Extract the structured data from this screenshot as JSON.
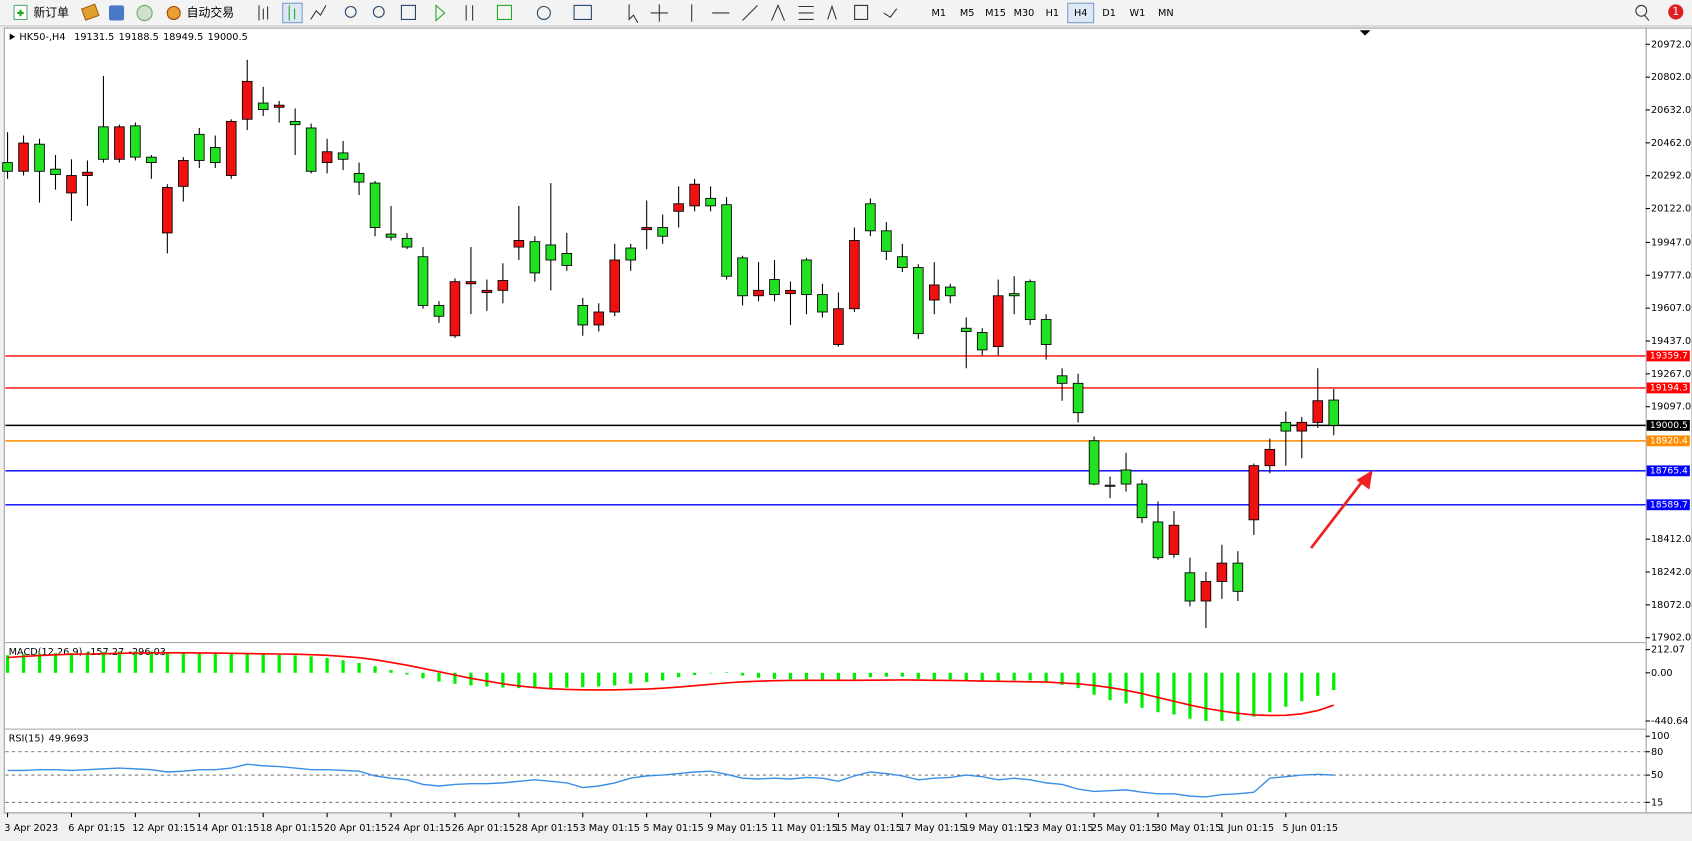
{
  "toolbar": {
    "new_order": "新订单",
    "auto_trading": "自动交易",
    "timeframes": [
      "M1",
      "M5",
      "M15",
      "M30",
      "H1",
      "H4",
      "D1",
      "W1",
      "MN"
    ],
    "active_timeframe": "H4",
    "notifications": 1
  },
  "chart_data": [
    {
      "type": "candlestick",
      "title": "HK50-,H4",
      "up_color": "#ee1111",
      "down_color": "#22e022",
      "categories": [
        "3 Apr 2023",
        null,
        null,
        null,
        "6 Apr 01:15",
        null,
        null,
        null,
        "12 Apr 01:15",
        null,
        null,
        null,
        "14 Apr 01:15",
        null,
        null,
        null,
        "18 Apr 01:15",
        null,
        null,
        null,
        "20 Apr 01:15",
        null,
        null,
        null,
        "24 Apr 01:15",
        null,
        null,
        null,
        "26 Apr 01:15",
        null,
        null,
        null,
        "28 Apr 01:15",
        null,
        null,
        null,
        "3 May 01:15",
        null,
        null,
        null,
        "5 May 01:15",
        null,
        null,
        null,
        "9 May 01:15",
        null,
        null,
        null,
        "11 May 01:15",
        null,
        null,
        null,
        "15 May 01:15",
        null,
        null,
        null,
        "17 May 01:15",
        null,
        null,
        null,
        "19 May 01:15",
        null,
        null,
        null,
        "23 May 01:15",
        null,
        null,
        null,
        "25 May 01:15",
        null,
        null,
        null,
        "30 May 01:15",
        null,
        null,
        null,
        "1 Jun 01:15",
        null,
        null,
        null,
        "5 Jun 01:15",
        null,
        null,
        null
      ],
      "open": [
        20360,
        20315,
        20455,
        20326,
        20203,
        20293,
        20545,
        20377,
        20550,
        20388,
        19996,
        20237,
        20506,
        20438,
        20293,
        20584,
        20668,
        20646,
        20573,
        20539,
        20360,
        20410,
        20304,
        20254,
        19990,
        19968,
        19873,
        19621,
        19464,
        19733,
        19688,
        19699,
        19923,
        19951,
        19934,
        19890,
        19621,
        19520,
        19587,
        19918,
        20013,
        20024,
        20108,
        20136,
        20175,
        20142,
        19867,
        19671,
        19755,
        19682,
        19856,
        19677,
        19419,
        19604,
        20147,
        20007,
        19873,
        19817,
        19649,
        19716,
        19503,
        19481,
        19408,
        19682,
        19744,
        19548,
        19257,
        19218,
        18921,
        18691,
        18770,
        18697,
        18501,
        18333,
        18238,
        18092,
        18193,
        18288,
        18512,
        18792,
        19016,
        18971,
        19016,
        19131.5
      ],
      "high": [
        20517,
        20500,
        20483,
        20399,
        20377,
        20371,
        20808,
        20556,
        20567,
        20399,
        20248,
        20388,
        20539,
        20500,
        20584,
        20892,
        20752,
        20679,
        20640,
        20562,
        20483,
        20472,
        20360,
        20265,
        20136,
        19996,
        19923,
        19643,
        19761,
        19923,
        19755,
        19839,
        20136,
        19979,
        20254,
        19996,
        19660,
        19632,
        19940,
        19940,
        20164,
        20091,
        20237,
        20276,
        20237,
        20181,
        19878,
        19845,
        19856,
        19744,
        19867,
        19733,
        19688,
        20024,
        20175,
        20052,
        19940,
        19834,
        19845,
        19733,
        19559,
        19503,
        19755,
        19772,
        19755,
        19576,
        19296,
        19268,
        18943,
        18736,
        18859,
        18719,
        18607,
        18557,
        18316,
        18243,
        18383,
        18350,
        18803,
        18932,
        19072,
        19044,
        19296,
        19188.5
      ],
      "low": [
        20276,
        20293,
        20153,
        20220,
        20058,
        20136,
        20360,
        20360,
        20371,
        20276,
        19890,
        20158,
        20332,
        20332,
        20276,
        20528,
        20601,
        20567,
        20399,
        20304,
        20304,
        20321,
        20192,
        19979,
        19957,
        19912,
        19604,
        19531,
        19453,
        19576,
        19593,
        19632,
        19856,
        19744,
        19699,
        19800,
        19464,
        19486,
        19565,
        19800,
        19912,
        19940,
        20024,
        20108,
        20108,
        19755,
        19621,
        19643,
        19643,
        19520,
        19576,
        19559,
        19408,
        19587,
        19979,
        19856,
        19794,
        19447,
        19576,
        19632,
        19296,
        19363,
        19363,
        19576,
        19520,
        19341,
        19128,
        19016,
        18691,
        18624,
        18658,
        18495,
        18305,
        18316,
        18064,
        17952,
        18103,
        18092,
        18434,
        18753,
        18792,
        18831,
        18988,
        18949.5
      ],
      "close": [
        20315,
        20461,
        20315,
        20298,
        20293,
        20310,
        20377,
        20545,
        20388,
        20360,
        20231,
        20371,
        20371,
        20360,
        20573,
        20780,
        20634,
        20657,
        20556,
        20315,
        20416,
        20377,
        20259,
        20024,
        19974,
        19923,
        19621,
        19565,
        19744,
        19744,
        19699,
        19750,
        19957,
        19789,
        19856,
        19828,
        19520,
        19587,
        19856,
        19856,
        20024,
        19979,
        20147,
        20248,
        20136,
        19772,
        19671,
        19699,
        19677,
        19699,
        19677,
        19587,
        19604,
        19957,
        20007,
        19901,
        19817,
        19475,
        19727,
        19671,
        19486,
        19391,
        19671,
        19671,
        19548,
        19419,
        19218,
        19066,
        18697,
        18686,
        18697,
        18523,
        18316,
        18484,
        18092,
        18193,
        18288,
        18142,
        18792,
        18876,
        18971,
        19016,
        19128,
        19000.5
      ],
      "ylim": [
        17885,
        21050
      ],
      "yticks": [
        {
          "value": 20972,
          "label": "20972.0"
        },
        {
          "value": 20802,
          "label": "20802.0"
        },
        {
          "value": 20632,
          "label": "20632.0"
        },
        {
          "value": 20462,
          "label": "20462.0"
        },
        {
          "value": 20292,
          "label": "20292.0"
        },
        {
          "value": 20122,
          "label": "20122.0"
        },
        {
          "value": 19947,
          "label": "19947.0"
        },
        {
          "value": 19777,
          "label": "19777.0"
        },
        {
          "value": 19607,
          "label": "19607.0"
        },
        {
          "value": 19437,
          "label": "19437.0"
        },
        {
          "value": 19267,
          "label": "19267.0"
        },
        {
          "value": 19097,
          "label": "19097.0"
        },
        {
          "value": 18412,
          "label": "18412.0"
        },
        {
          "value": 18242,
          "label": "18242.0"
        },
        {
          "value": 18072,
          "label": "18072.0"
        },
        {
          "value": 17902,
          "label": "17902.0"
        }
      ],
      "hlines": [
        {
          "value": 19359.7,
          "color": "#ff0000"
        },
        {
          "value": 19194.3,
          "color": "#ff0000"
        },
        {
          "value": 19000.5,
          "color": "#000000"
        },
        {
          "value": 18920.4,
          "color": "#ff8c00"
        },
        {
          "value": 18765.4,
          "color": "#0000ff"
        },
        {
          "value": 18589.7,
          "color": "#0000ff"
        }
      ]
    },
    {
      "type": "macd",
      "title": "MACD(12,26,9)",
      "series": [
        {
          "color": "#00ee00",
          "values": [
            160,
            170,
            175,
            180,
            180,
            185,
            190,
            195,
            195,
            195,
            190,
            185,
            180,
            180,
            175,
            175,
            170,
            165,
            160,
            150,
            135,
            115,
            90,
            60,
            25,
            -15,
            -50,
            -80,
            -100,
            -115,
            -125,
            -135,
            -140,
            -140,
            -140,
            -135,
            -130,
            -125,
            -115,
            -100,
            -85,
            -70,
            -40,
            -20,
            -5,
            5,
            -25,
            -45,
            -55,
            -60,
            -60,
            -65,
            -75,
            -60,
            -40,
            -35,
            -35,
            -55,
            -60,
            -60,
            -70,
            -80,
            -75,
            -70,
            -70,
            -80,
            -110,
            -140,
            -200,
            -250,
            -280,
            -320,
            -360,
            -380,
            -420,
            -440,
            -440,
            -440,
            -400,
            -360,
            -310,
            -260,
            -210,
            -157.27
          ]
        },
        {
          "color": "#ff0000",
          "values": [
            140,
            150,
            158,
            165,
            170,
            172,
            175,
            178,
            180,
            182,
            183,
            183,
            182,
            180,
            178,
            176,
            174,
            172,
            170,
            166,
            160,
            150,
            138,
            120,
            95,
            70,
            40,
            10,
            -20,
            -50,
            -75,
            -100,
            -120,
            -135,
            -145,
            -152,
            -155,
            -156,
            -155,
            -152,
            -148,
            -140,
            -130,
            -118,
            -105,
            -92,
            -82,
            -76,
            -72,
            -70,
            -68,
            -68,
            -68,
            -68,
            -67,
            -66,
            -65,
            -66,
            -68,
            -70,
            -72,
            -75,
            -78,
            -80,
            -82,
            -85,
            -92,
            -100,
            -115,
            -135,
            -160,
            -190,
            -225,
            -260,
            -295,
            -325,
            -350,
            -370,
            -385,
            -390,
            -388,
            -375,
            -345,
            -296.03
          ]
        }
      ],
      "ylim": [
        -490,
        261
      ],
      "yticks": [
        212.07,
        {
          "value": 0,
          "label": "0.00"
        },
        -440.64
      ]
    },
    {
      "type": "line",
      "title": "RSI(15)",
      "color": "#3a8ee6",
      "values": [
        56,
        56,
        57,
        57,
        56,
        57,
        58,
        59,
        58,
        57,
        54,
        55,
        57,
        57,
        59,
        64,
        62,
        61,
        59,
        57,
        57,
        56,
        55,
        49,
        46,
        44,
        38,
        36,
        38,
        39,
        39,
        40,
        42,
        44,
        42,
        40,
        34,
        36,
        40,
        46,
        49,
        50,
        52,
        54,
        55,
        51,
        46,
        45,
        46,
        45,
        47,
        46,
        42,
        49,
        54,
        52,
        49,
        44,
        46,
        47,
        50,
        48,
        44,
        46,
        44,
        40,
        38,
        32,
        29,
        30,
        31,
        28,
        26,
        26,
        23,
        22,
        25,
        26,
        28,
        46,
        48,
        50,
        51,
        49.9693
      ],
      "ylim": [
        7,
        107
      ],
      "yticks": [
        100,
        80,
        50,
        15
      ],
      "levels": [
        80,
        50,
        15
      ]
    }
  ]
}
